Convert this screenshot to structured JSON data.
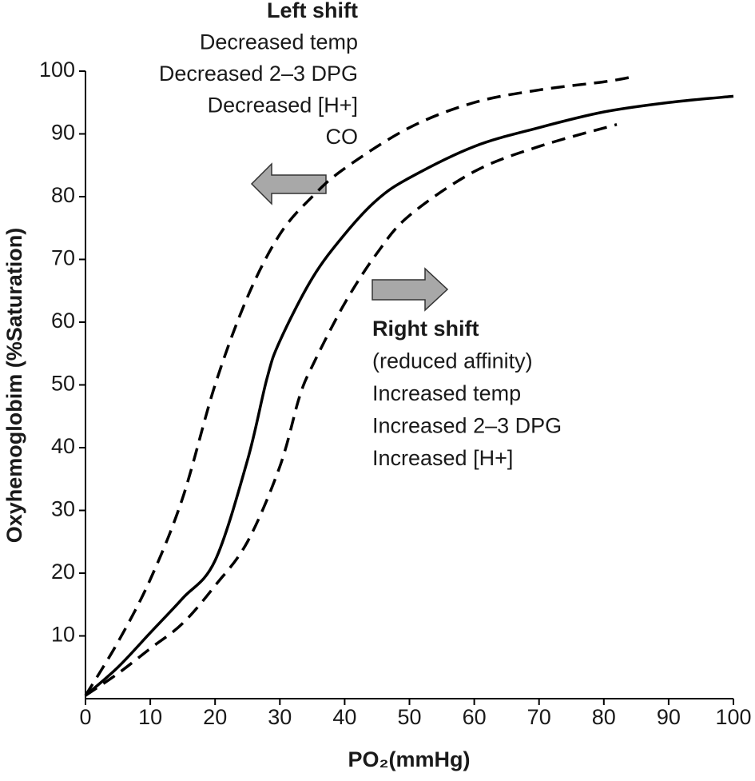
{
  "chart_data": {
    "type": "line",
    "x_label": "PO₂(mmHg)",
    "y_label": "Oxyhemoglobim (%Saturation)",
    "xlim": [
      0,
      100
    ],
    "ylim": [
      0,
      100
    ],
    "xticks": [
      0,
      10,
      20,
      30,
      40,
      50,
      60,
      70,
      80,
      90,
      100
    ],
    "yticks": [
      10,
      20,
      30,
      40,
      50,
      60,
      70,
      80,
      90,
      100
    ],
    "grid": false,
    "series": [
      {
        "color": "#000000",
        "style": "solid",
        "x": [
          0,
          5,
          10,
          15,
          20,
          25,
          28,
          30,
          35,
          40,
          45,
          50,
          60,
          70,
          80,
          90,
          100
        ],
        "values": [
          0.5,
          5,
          10.5,
          16,
          22,
          38,
          51,
          57,
          67,
          74,
          79.5,
          83,
          88,
          91,
          93.5,
          95,
          96
        ]
      },
      {
        "color": "#000000",
        "style": "dashed",
        "x": [
          0,
          5,
          10,
          15,
          20,
          25,
          30,
          35,
          40,
          50,
          60,
          70,
          80,
          84
        ],
        "values": [
          0.5,
          9,
          19,
          32,
          50,
          64,
          74,
          80,
          84.5,
          91,
          95,
          97,
          98.3,
          99
        ]
      },
      {
        "color": "#000000",
        "style": "dashed",
        "x": [
          0,
          5,
          10,
          15,
          20,
          25,
          30,
          33,
          35,
          40,
          45,
          50,
          60,
          70,
          82
        ],
        "values": [
          0.5,
          4,
          8,
          12,
          18,
          25,
          37,
          48,
          53,
          63,
          71,
          77,
          84,
          88,
          91.5
        ]
      }
    ],
    "left_shift": {
      "title": "Left shift",
      "lines": [
        "Decreased temp",
        "Decreased 2–3 DPG",
        "Decreased [H+]",
        "CO"
      ]
    },
    "right_shift": {
      "title": "Right shift",
      "lines": [
        "(reduced affinity)",
        "Increased temp",
        "Increased 2–3 DPG",
        "Increased [H+]"
      ]
    }
  }
}
